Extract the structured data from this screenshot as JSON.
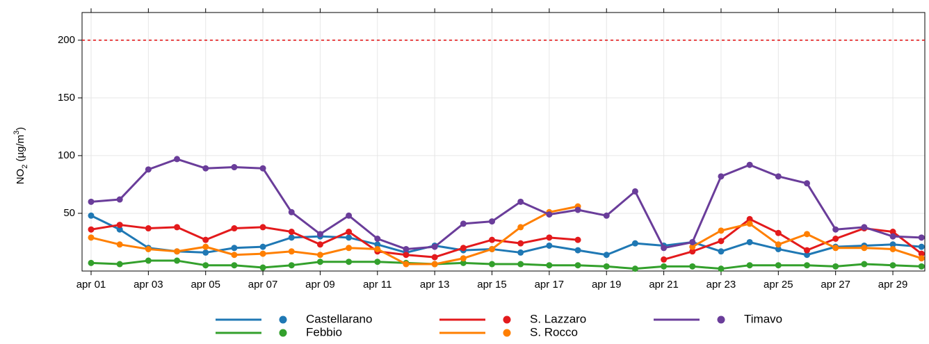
{
  "chart_data": {
    "type": "line",
    "ylabel": {
      "main": "NO",
      "sub": "2",
      "mid": " (µg/m",
      "sup": "3",
      "end": ")"
    },
    "categories": [
      "apr 01",
      null,
      "apr 03",
      null,
      "apr 05",
      null,
      "apr 07",
      null,
      "apr 09",
      null,
      "apr 11",
      null,
      "apr 13",
      null,
      "apr 15",
      null,
      "apr 17",
      null,
      "apr 19",
      null,
      "apr 21",
      null,
      "apr 23",
      null,
      "apr 25",
      null,
      "apr 27",
      null,
      "apr 29",
      null
    ],
    "ylim": [
      0,
      224
    ],
    "yticks": [
      50,
      100,
      150,
      200
    ],
    "grid": true,
    "reference_line": {
      "value": 200,
      "color": "#e31a1c"
    },
    "series": [
      {
        "name": "Castellarano",
        "color": "#1f78b4",
        "values": [
          48,
          36,
          20,
          17,
          16,
          20,
          21,
          29,
          30,
          29,
          23,
          16,
          22,
          18,
          19,
          16,
          22,
          18,
          14,
          24,
          22,
          25,
          17,
          25,
          19,
          14,
          21,
          22,
          23,
          21
        ]
      },
      {
        "name": "Febbio",
        "color": "#33a02c",
        "values": [
          7,
          6,
          9,
          9,
          5,
          5,
          3,
          5,
          8,
          8,
          8,
          7,
          6,
          7,
          6,
          6,
          5,
          5,
          4,
          2,
          4,
          4,
          2,
          5,
          5,
          5,
          4,
          6,
          5,
          4
        ]
      },
      {
        "name": "S. Lazzaro",
        "color": "#e31a1c",
        "values": [
          36,
          40,
          37,
          38,
          27,
          37,
          38,
          34,
          23,
          34,
          17,
          14,
          12,
          20,
          27,
          24,
          29,
          27,
          null,
          null,
          10,
          17,
          26,
          45,
          33,
          18,
          28,
          37,
          34,
          15
        ]
      },
      {
        "name": "S. Rocco",
        "color": "#ff7f00",
        "values": [
          29,
          23,
          19,
          17,
          21,
          14,
          15,
          17,
          14,
          20,
          19,
          6,
          6,
          11,
          19,
          38,
          51,
          56,
          null,
          null,
          null,
          21,
          35,
          41,
          23,
          32,
          20,
          20,
          19,
          11
        ]
      },
      {
        "name": "Timavo",
        "color": "#6a3d9a",
        "values": [
          60,
          62,
          88,
          97,
          89,
          90,
          89,
          51,
          32,
          48,
          28,
          19,
          21,
          41,
          43,
          60,
          49,
          53,
          48,
          69,
          20,
          25,
          82,
          92,
          82,
          76,
          36,
          38,
          30,
          29
        ]
      }
    ]
  }
}
